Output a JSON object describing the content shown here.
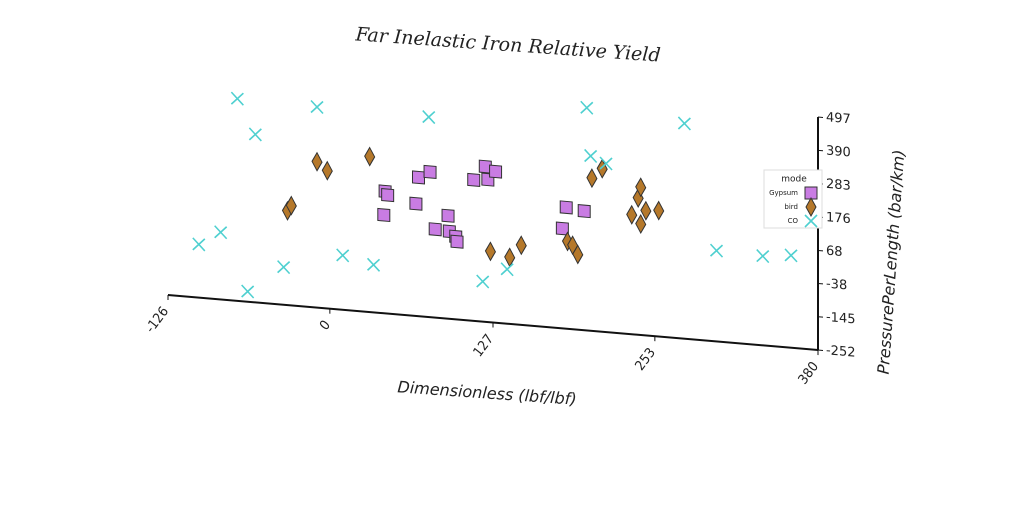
{
  "chart_data": {
    "type": "scatter",
    "title": "Far Inelastic Iron Relative Yield",
    "x_label": "Dimensionless (lbf/lbf)",
    "y_label": "PressurePerLength (bar/km)",
    "xlim": [
      -126,
      380
    ],
    "xticks": [
      -126,
      0,
      127,
      253,
      380
    ],
    "ylim": [
      -252,
      497
    ],
    "yticks": [
      -252,
      -145,
      -38,
      68,
      176,
      283,
      390,
      497
    ],
    "legend_title": "mode",
    "legend_position": "upper right",
    "series": [
      {
        "name": "Gypsum",
        "color": "#c97ce3",
        "marker": "square",
        "x": [
          43,
          45,
          42,
          69,
          78,
          67,
          82,
          92,
          93,
          98,
          99,
          112,
          121,
          123,
          129,
          181,
          184,
          198
        ],
        "values": [
          140,
          129,
          64,
          194,
          215,
          109,
          32,
          79,
          29,
          14,
          -2,
          201,
          247,
          206,
          234,
          69,
          138,
          131
        ]
      },
      {
        "name": "bird",
        "color": "#b5782a",
        "marker": "diamond",
        "x": [
          -33,
          -30,
          -10,
          -2,
          31,
          125,
          140,
          149,
          185,
          189,
          193,
          204,
          212,
          235,
          240,
          242,
          242,
          246,
          256
        ],
        "values": [
          51,
          69,
          217,
          191,
          248,
          -24,
          -38,
          4,
          29,
          18,
          -10,
          239,
          272,
          132,
          188,
          223,
          105,
          149,
          153
        ]
      },
      {
        "name": "CO",
        "color": "#4fd0d0",
        "marker": "x",
        "x": [
          -72,
          -58,
          -10,
          77,
          200,
          203,
          215,
          276,
          -102,
          -85,
          -64,
          -36,
          10,
          34,
          119,
          138,
          301,
          337,
          359
        ],
        "values": [
          398,
          288,
          393,
          391,
          464,
          310,
          290,
          440,
          -81,
          -36,
          -219,
          -131,
          -77,
          -99,
          -123,
          -77,
          40,
          35,
          45
        ]
      }
    ]
  }
}
